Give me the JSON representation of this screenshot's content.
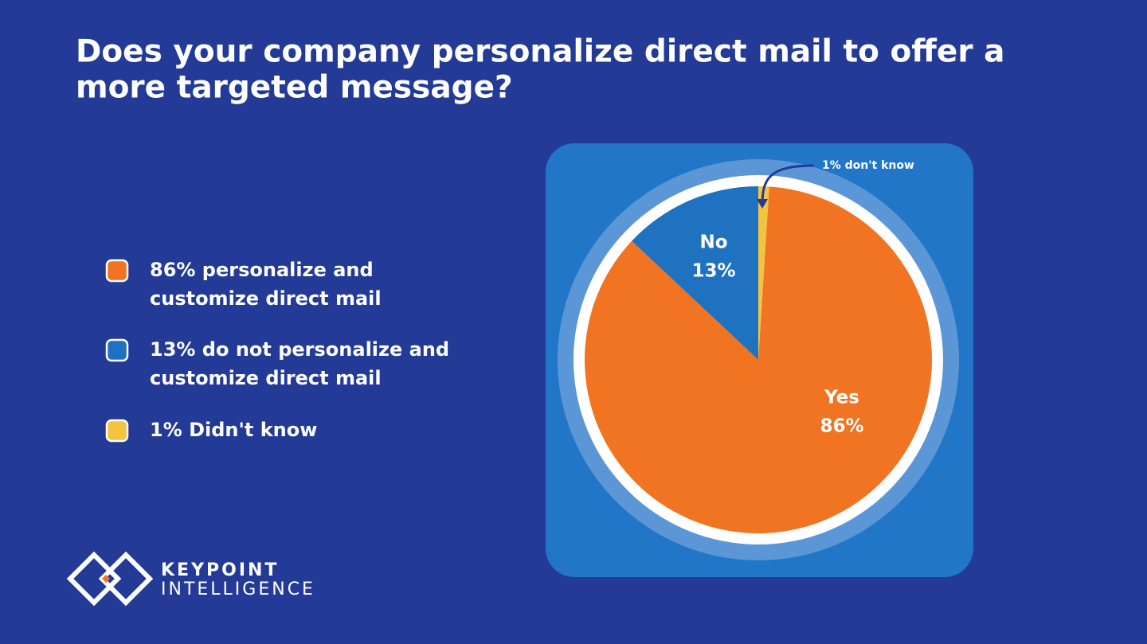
{
  "chart_data": {
    "type": "pie",
    "title": [
      "Does your company personalize direct mail to offer a",
      "more targeted message?"
    ],
    "categories": [
      "86% personalize and customize direct mail",
      "13% do not personalize and customize direct mail",
      "1% Didn't know"
    ],
    "values": [
      86,
      13,
      1
    ],
    "colors": [
      "#f07422",
      "#1f72c0",
      "#f5c342"
    ],
    "slice_labels": [
      "Yes",
      "No",
      null
    ],
    "value_labels": [
      "86%",
      "13%",
      "1% don't know"
    ]
  },
  "logo": {
    "line1": "KEYPOINT",
    "line2": "INTELLIGENCE"
  }
}
